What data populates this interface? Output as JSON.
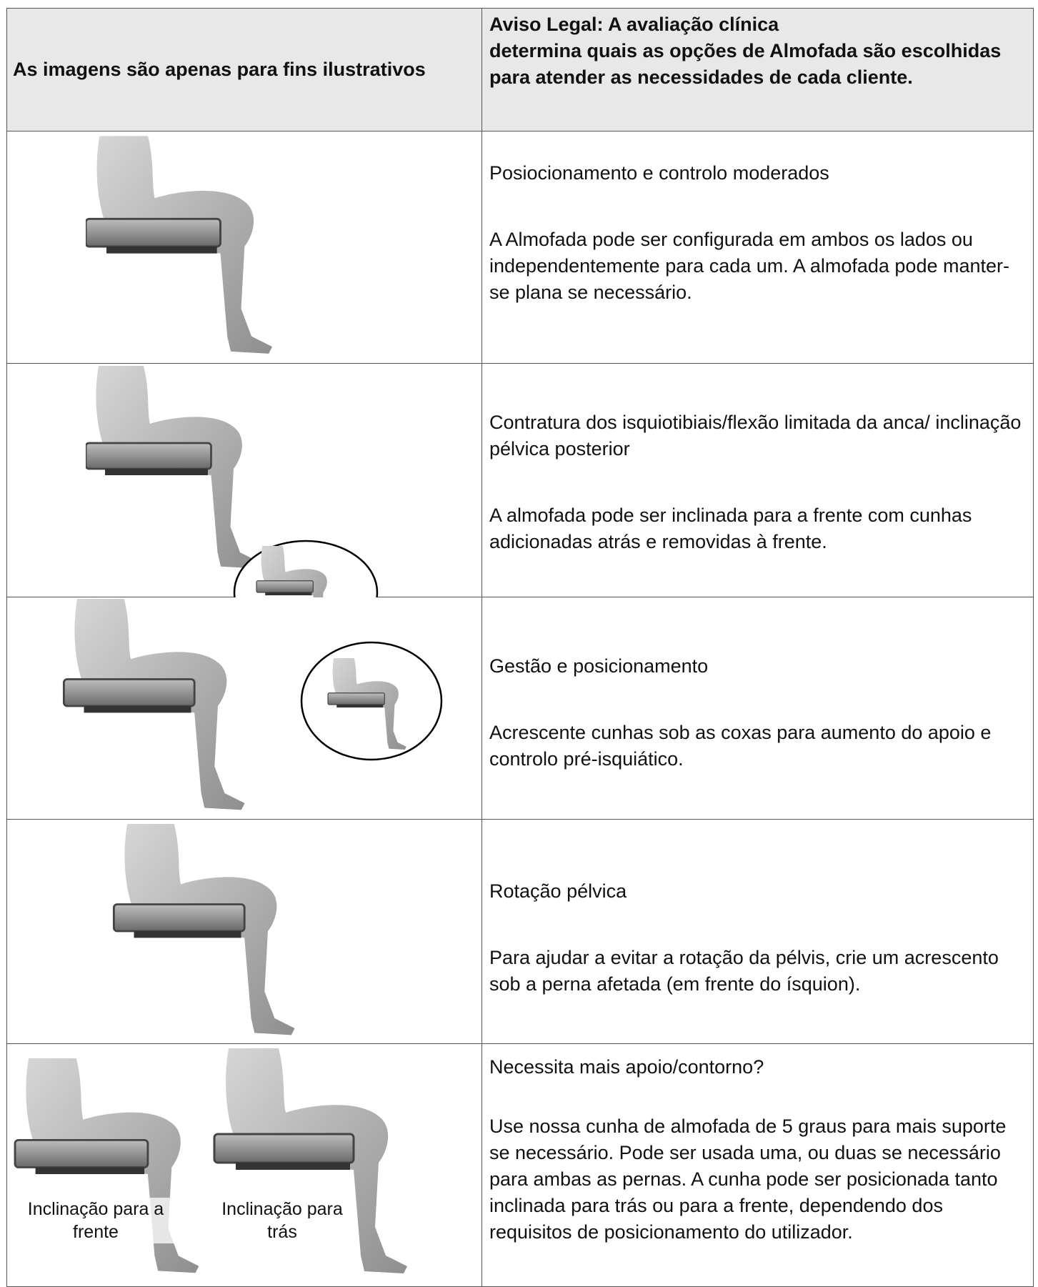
{
  "header": {
    "left": "As imagens são apenas para fins ilustrativos",
    "right": [
      "Aviso Legal: A avaliação clínica",
      "determina quais as opções de Almofada são escolhidas para atender as necessidades de cada cliente."
    ]
  },
  "rows": [
    {
      "title": "Posiocionamento e controlo moderados",
      "description": "A Almofada pode ser configurada em ambos os lados ou independentemente para cada um. A almofada pode manter-se plana se necessário."
    },
    {
      "title": "Contratura dos isquiotibiais/flexão limitada da anca/ inclinação pélvica posterior",
      "description": "A almofada pode ser inclinada para a frente com cunhas adicionadas atrás e removidas à frente."
    },
    {
      "title": "Gestão e posicionamento",
      "description": "Acrescente cunhas sob as coxas para aumento do apoio e controlo pré-isquiático."
    },
    {
      "title": "Rotação pélvica",
      "description": "Para ajudar a evitar a rotação da pélvis, crie um acrescento sob a perna afetada (em frente do ísquion)."
    },
    {
      "title": "Necessita mais apoio/contorno?",
      "description": "Use nossa cunha de almofada de 5 graus para mais suporte se necessário. Pode ser usada uma, ou duas se necessário para ambas as pernas. A cunha pode ser posicionada tanto inclinada para trás ou para a frente, dependendo dos requisitos de posicionamento do utilizador.",
      "image_labels": [
        "Inclinação para a frente",
        "Inclinação para trás"
      ]
    }
  ]
}
